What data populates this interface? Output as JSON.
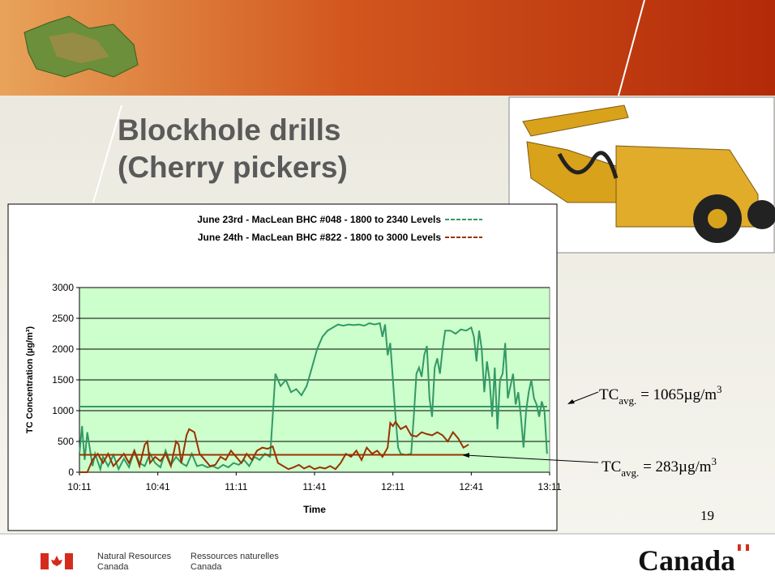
{
  "header": {
    "title_lines": [
      "Blockhole drills",
      "(Cherry pickers)"
    ]
  },
  "chart_data": {
    "type": "line",
    "xlabel": "Time",
    "ylabel": "TC Concentration (µg/m³)",
    "xlim": [
      611,
      791
    ],
    "xticks": [
      {
        "value": 611,
        "label": "10:11"
      },
      {
        "value": 641,
        "label": "10:41"
      },
      {
        "value": 671,
        "label": "11:11"
      },
      {
        "value": 701,
        "label": "11:41"
      },
      {
        "value": 731,
        "label": "12:11"
      },
      {
        "value": 761,
        "label": "12:41"
      },
      {
        "value": 791,
        "label": "13:11"
      }
    ],
    "ylim": [
      0,
      3000
    ],
    "yticks": [
      0,
      500,
      1000,
      1500,
      2000,
      2500,
      3000
    ],
    "grid": true,
    "background": "#ccffcc",
    "series": [
      {
        "name": "June 23rd - MacLean BHC #048 - 1800 to 2340 Levels",
        "color": "#339966",
        "x": [
          611,
          612,
          613,
          614,
          616,
          617,
          619,
          620,
          622,
          624,
          626,
          628,
          630,
          632,
          634,
          636,
          638,
          640,
          642,
          644,
          646,
          648,
          650,
          652,
          654,
          656,
          658,
          660,
          662,
          664,
          666,
          668,
          670,
          672,
          674,
          676,
          678,
          680,
          682,
          684,
          686,
          688,
          690,
          692,
          694,
          696,
          698,
          700,
          702,
          704,
          706,
          708,
          710,
          712,
          714,
          716,
          718,
          720,
          722,
          724,
          726,
          727,
          728,
          729,
          730,
          731,
          732,
          733,
          734,
          736,
          738,
          739,
          740,
          741,
          742,
          743,
          744,
          745,
          746,
          747,
          748,
          749,
          750,
          751,
          753,
          755,
          757,
          759,
          761,
          762,
          763,
          764,
          765,
          766,
          767,
          768,
          769,
          770,
          771,
          772,
          773,
          774,
          775,
          776,
          777,
          778,
          779,
          780,
          781,
          782,
          783,
          784,
          785,
          786,
          787,
          788,
          789,
          790
        ],
        "values": [
          300,
          750,
          200,
          650,
          100,
          300,
          50,
          250,
          100,
          280,
          50,
          220,
          80,
          350,
          150,
          100,
          300,
          150,
          80,
          350,
          120,
          250,
          150,
          100,
          300,
          100,
          120,
          80,
          100,
          60,
          120,
          80,
          150,
          120,
          200,
          100,
          250,
          200,
          300,
          250,
          1600,
          1400,
          1500,
          1300,
          1350,
          1250,
          1400,
          1700,
          2000,
          2200,
          2300,
          2350,
          2400,
          2380,
          2400,
          2390,
          2400,
          2380,
          2420,
          2400,
          2420,
          2200,
          2400,
          1900,
          2100,
          1500,
          900,
          400,
          300,
          280,
          300,
          900,
          1600,
          1700,
          1550,
          1900,
          2050,
          1200,
          900,
          1700,
          1850,
          1600,
          2000,
          2300,
          2300,
          2250,
          2320,
          2300,
          2350,
          2200,
          1800,
          2300,
          2000,
          1300,
          1800,
          1500,
          900,
          1700,
          700,
          1500,
          1600,
          2100,
          1200,
          1400,
          1600,
          1100,
          1300,
          900,
          400,
          1000,
          1300,
          1500,
          1200,
          1100,
          900,
          1150,
          1000,
          300
        ]
      },
      {
        "name": "June 24th - MacLean BHC #822 - 1800 to 3000 Levels",
        "color": "#993300",
        "x": [
          611,
          614,
          616,
          618,
          620,
          622,
          624,
          626,
          628,
          630,
          632,
          634,
          636,
          637,
          638,
          640,
          642,
          644,
          646,
          648,
          649,
          650,
          652,
          653,
          655,
          657,
          659,
          661,
          663,
          665,
          667,
          669,
          671,
          673,
          675,
          677,
          679,
          681,
          683,
          685,
          687,
          689,
          691,
          693,
          695,
          697,
          699,
          701,
          703,
          705,
          707,
          709,
          711,
          713,
          715,
          717,
          719,
          721,
          723,
          725,
          727,
          729,
          730,
          731,
          732,
          734,
          736,
          738,
          740,
          742,
          744,
          746,
          748,
          750,
          752,
          754,
          756,
          758,
          760
        ],
        "values": [
          0,
          0,
          200,
          300,
          150,
          300,
          100,
          200,
          300,
          150,
          350,
          100,
          450,
          500,
          150,
          250,
          180,
          300,
          100,
          500,
          450,
          150,
          600,
          700,
          650,
          300,
          200,
          100,
          120,
          250,
          200,
          350,
          250,
          150,
          300,
          200,
          350,
          400,
          380,
          420,
          150,
          100,
          50,
          80,
          120,
          60,
          100,
          50,
          80,
          60,
          100,
          50,
          150,
          300,
          250,
          350,
          200,
          400,
          300,
          350,
          250,
          400,
          800,
          750,
          820,
          700,
          750,
          600,
          580,
          650,
          620,
          600,
          650,
          600,
          500,
          650,
          550,
          400,
          450
        ]
      }
    ],
    "averages": [
      {
        "value": 1065,
        "color": "#339966",
        "label": {
          "base": "TC",
          "sub": "avg.",
          "rest": " = 1065µg/m",
          "sup": "3"
        }
      },
      {
        "value": 283,
        "color": "#993300",
        "label": {
          "base": "TC",
          "sub": "avg.",
          "rest": " = 283µg/m",
          "sup": "3"
        }
      }
    ]
  },
  "page_number": "19",
  "footer": {
    "dept_en": [
      "Natural Resources",
      "Canada"
    ],
    "dept_fr": [
      "Ressources naturelles",
      "Canada"
    ],
    "wordmark": "Canada"
  }
}
